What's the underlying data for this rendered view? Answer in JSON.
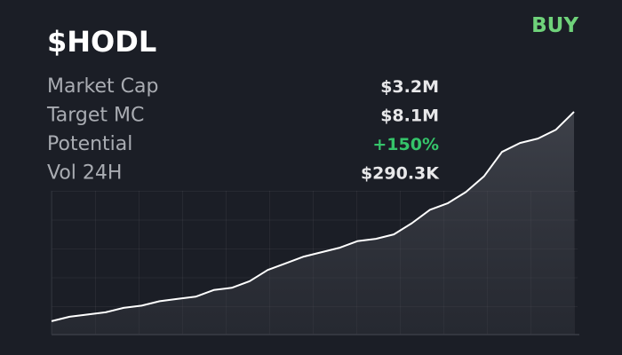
{
  "header": {
    "title": "$HODL",
    "action": "BUY"
  },
  "stats": [
    {
      "label": "Market Cap",
      "value": "$3.2M",
      "color": "#e8e8ea"
    },
    {
      "label": "Target MC",
      "value": "$8.1M",
      "color": "#e8e8ea"
    },
    {
      "label": "Potential",
      "value": "+150%",
      "color": "#35c46a"
    },
    {
      "label": "Vol 24H",
      "value": "$290.3K",
      "color": "#e8e8ea"
    }
  ],
  "chart_data": {
    "type": "line",
    "color": "#ffffff",
    "values": [
      6,
      8,
      9,
      10,
      12,
      13,
      15,
      16,
      17,
      20,
      21,
      24,
      29,
      32,
      35,
      37,
      39,
      42,
      43,
      45,
      50,
      56,
      59,
      64,
      71,
      82,
      86,
      88,
      92,
      100
    ],
    "ylim": [
      0,
      100
    ]
  }
}
